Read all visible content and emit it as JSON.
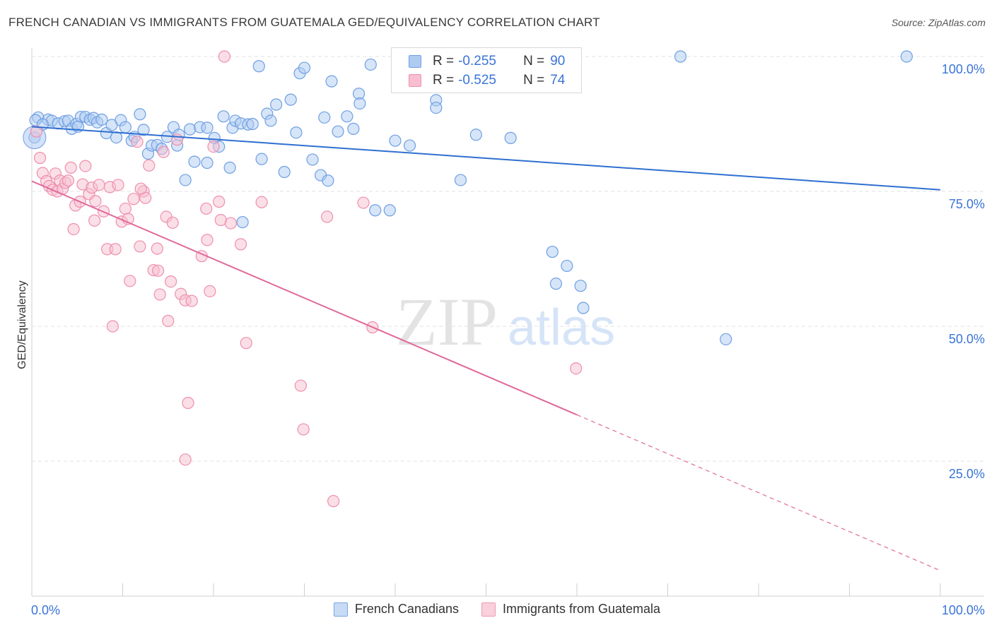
{
  "title": "FRENCH CANADIAN VS IMMIGRANTS FROM GUATEMALA GED/EQUIVALENCY CORRELATION CHART",
  "source": "Source: ZipAtlas.com",
  "watermark": {
    "zip": "ZIP",
    "atlas": "atlas"
  },
  "legend": {
    "r_label": "R =",
    "n_label": "N =",
    "rows": [
      {
        "r": "-0.255",
        "n": "90"
      },
      {
        "r": "-0.525",
        "n": "74"
      }
    ]
  },
  "bottom_legend": [
    "French Canadians",
    "Immigrants from Guatemala"
  ],
  "colors": {
    "blue_fill": "#aecbf2",
    "blue_stroke": "#6f9fe3",
    "blue_line": "#2f6fd0",
    "pink_fill": "#f7bfd0",
    "pink_stroke": "#ee8fae",
    "pink_line": "#e0689a",
    "axis_text": "#3a74d6"
  },
  "chart_data": {
    "type": "scatter",
    "title": "FRENCH CANADIAN VS IMMIGRANTS FROM GUATEMALA GED/EQUIVALENCY CORRELATION CHART",
    "xlabel": "",
    "ylabel": "GED/Equivalency",
    "xlim": [
      0,
      100
    ],
    "ylim": [
      0,
      102
    ],
    "x_tick_labels": [
      "0.0%",
      "100.0%"
    ],
    "y_tick_labels": [
      "100.0%",
      "75.0%",
      "50.0%",
      "25.0%"
    ],
    "y_ticks": [
      100,
      75,
      50,
      25
    ],
    "grid": true,
    "legend_position": "top-center",
    "series": [
      {
        "name": "French Canadians",
        "trendline": {
          "x0": 0,
          "y0": 87.0,
          "x1": 100,
          "y1": 75.3
        },
        "points": [
          [
            0.7,
            88.7
          ],
          [
            0.4,
            88.2
          ],
          [
            1.8,
            88.3
          ],
          [
            2.2,
            88.1
          ],
          [
            2.9,
            87.6
          ],
          [
            3.6,
            88.0
          ],
          [
            4.0,
            88.1
          ],
          [
            4.4,
            86.6
          ],
          [
            4.9,
            87.5
          ],
          [
            5.4,
            88.8
          ],
          [
            5.9,
            88.8
          ],
          [
            6.4,
            88.3
          ],
          [
            6.8,
            88.6
          ],
          [
            7.2,
            87.8
          ],
          [
            7.7,
            88.3
          ],
          [
            8.2,
            85.8
          ],
          [
            8.8,
            87.3
          ],
          [
            9.3,
            85.0
          ],
          [
            9.8,
            88.2
          ],
          [
            10.3,
            86.9
          ],
          [
            11.0,
            84.4
          ],
          [
            11.3,
            85.1
          ],
          [
            11.9,
            89.3
          ],
          [
            12.3,
            86.4
          ],
          [
            12.8,
            82.0
          ],
          [
            13.2,
            83.5
          ],
          [
            13.8,
            83.6
          ],
          [
            14.3,
            82.9
          ],
          [
            14.9,
            85.1
          ],
          [
            15.6,
            86.9
          ],
          [
            16.2,
            85.5
          ],
          [
            16.9,
            77.1
          ],
          [
            17.4,
            86.5
          ],
          [
            17.9,
            80.5
          ],
          [
            18.5,
            86.9
          ],
          [
            19.3,
            80.3
          ],
          [
            19.3,
            86.8
          ],
          [
            20.1,
            84.9
          ],
          [
            20.6,
            83.3
          ],
          [
            21.1,
            88.9
          ],
          [
            21.8,
            79.4
          ],
          [
            22.1,
            86.8
          ],
          [
            22.4,
            88.1
          ],
          [
            23.0,
            87.6
          ],
          [
            23.2,
            69.3
          ],
          [
            23.8,
            87.4
          ],
          [
            24.3,
            87.5
          ],
          [
            25.0,
            98.2
          ],
          [
            25.3,
            81.0
          ],
          [
            25.9,
            89.4
          ],
          [
            26.3,
            88.1
          ],
          [
            26.9,
            91.1
          ],
          [
            27.8,
            78.6
          ],
          [
            28.5,
            92.0
          ],
          [
            29.1,
            85.9
          ],
          [
            29.5,
            96.9
          ],
          [
            30.0,
            97.9
          ],
          [
            30.9,
            80.9
          ],
          [
            31.8,
            78.0
          ],
          [
            32.2,
            88.7
          ],
          [
            32.6,
            77.0
          ],
          [
            33.0,
            95.4
          ],
          [
            33.7,
            86.1
          ],
          [
            34.7,
            88.9
          ],
          [
            35.4,
            86.6
          ],
          [
            36.0,
            93.1
          ],
          [
            36.1,
            91.3
          ],
          [
            37.3,
            98.5
          ],
          [
            37.8,
            71.5
          ],
          [
            39.4,
            71.5
          ],
          [
            40.0,
            84.4
          ],
          [
            41.6,
            83.5
          ],
          [
            44.5,
            91.9
          ],
          [
            44.5,
            90.5
          ],
          [
            47.2,
            77.1
          ],
          [
            48.3,
            100.0
          ],
          [
            48.9,
            85.5
          ],
          [
            52.7,
            84.9
          ],
          [
            57.3,
            63.8
          ],
          [
            57.7,
            57.9
          ],
          [
            58.9,
            61.2
          ],
          [
            60.4,
            57.5
          ],
          [
            60.7,
            53.4
          ],
          [
            71.4,
            100.0
          ],
          [
            76.4,
            47.6
          ],
          [
            96.3,
            100.0
          ],
          [
            0.3,
            85.0
          ],
          [
            1.2,
            87.4
          ],
          [
            5.1,
            87.0
          ],
          [
            16.0,
            83.5
          ]
        ]
      },
      {
        "name": "Immigrants from Guatemala",
        "trendline": {
          "x0": 0,
          "y0": 76.9,
          "x1": 60,
          "y1": 33.6
        },
        "points": [
          [
            0.5,
            86.1
          ],
          [
            0.9,
            81.2
          ],
          [
            1.2,
            78.4
          ],
          [
            1.6,
            76.9
          ],
          [
            1.9,
            76.0
          ],
          [
            2.3,
            75.3
          ],
          [
            2.6,
            78.3
          ],
          [
            2.8,
            75.0
          ],
          [
            3.1,
            77.0
          ],
          [
            3.4,
            75.5
          ],
          [
            3.7,
            76.6
          ],
          [
            4.0,
            77.0
          ],
          [
            4.3,
            79.4
          ],
          [
            4.6,
            68.0
          ],
          [
            4.8,
            72.4
          ],
          [
            5.3,
            73.1
          ],
          [
            5.6,
            76.3
          ],
          [
            5.9,
            79.7
          ],
          [
            6.3,
            74.5
          ],
          [
            6.6,
            75.7
          ],
          [
            6.9,
            69.6
          ],
          [
            7.4,
            76.2
          ],
          [
            7.9,
            71.3
          ],
          [
            8.3,
            64.3
          ],
          [
            8.6,
            75.8
          ],
          [
            8.9,
            50.0
          ],
          [
            9.2,
            64.3
          ],
          [
            9.5,
            76.2
          ],
          [
            9.9,
            69.4
          ],
          [
            10.3,
            71.8
          ],
          [
            10.6,
            69.9
          ],
          [
            10.8,
            58.4
          ],
          [
            11.2,
            73.6
          ],
          [
            11.6,
            84.2
          ],
          [
            11.9,
            64.8
          ],
          [
            12.3,
            75.0
          ],
          [
            12.5,
            73.8
          ],
          [
            12.9,
            79.8
          ],
          [
            13.4,
            60.4
          ],
          [
            13.8,
            64.4
          ],
          [
            13.9,
            60.3
          ],
          [
            14.1,
            55.9
          ],
          [
            14.5,
            82.3
          ],
          [
            14.8,
            70.3
          ],
          [
            15.0,
            51.0
          ],
          [
            15.3,
            58.3
          ],
          [
            15.5,
            69.2
          ],
          [
            16.0,
            84.6
          ],
          [
            16.4,
            56.0
          ],
          [
            16.9,
            54.8
          ],
          [
            16.9,
            25.3
          ],
          [
            17.2,
            35.8
          ],
          [
            17.6,
            54.7
          ],
          [
            18.7,
            63.0
          ],
          [
            19.2,
            71.8
          ],
          [
            19.3,
            66.0
          ],
          [
            19.6,
            56.5
          ],
          [
            20.0,
            83.3
          ],
          [
            20.6,
            73.1
          ],
          [
            20.8,
            69.7
          ],
          [
            21.2,
            100.0
          ],
          [
            21.9,
            69.1
          ],
          [
            23.0,
            65.2
          ],
          [
            23.6,
            46.9
          ],
          [
            25.3,
            73.0
          ],
          [
            29.6,
            39.0
          ],
          [
            29.9,
            30.9
          ],
          [
            32.5,
            70.3
          ],
          [
            33.2,
            17.6
          ],
          [
            36.5,
            72.9
          ],
          [
            37.5,
            49.8
          ],
          [
            59.9,
            42.2
          ],
          [
            12.0,
            75.5
          ],
          [
            7.0,
            73.2
          ]
        ]
      }
    ]
  }
}
